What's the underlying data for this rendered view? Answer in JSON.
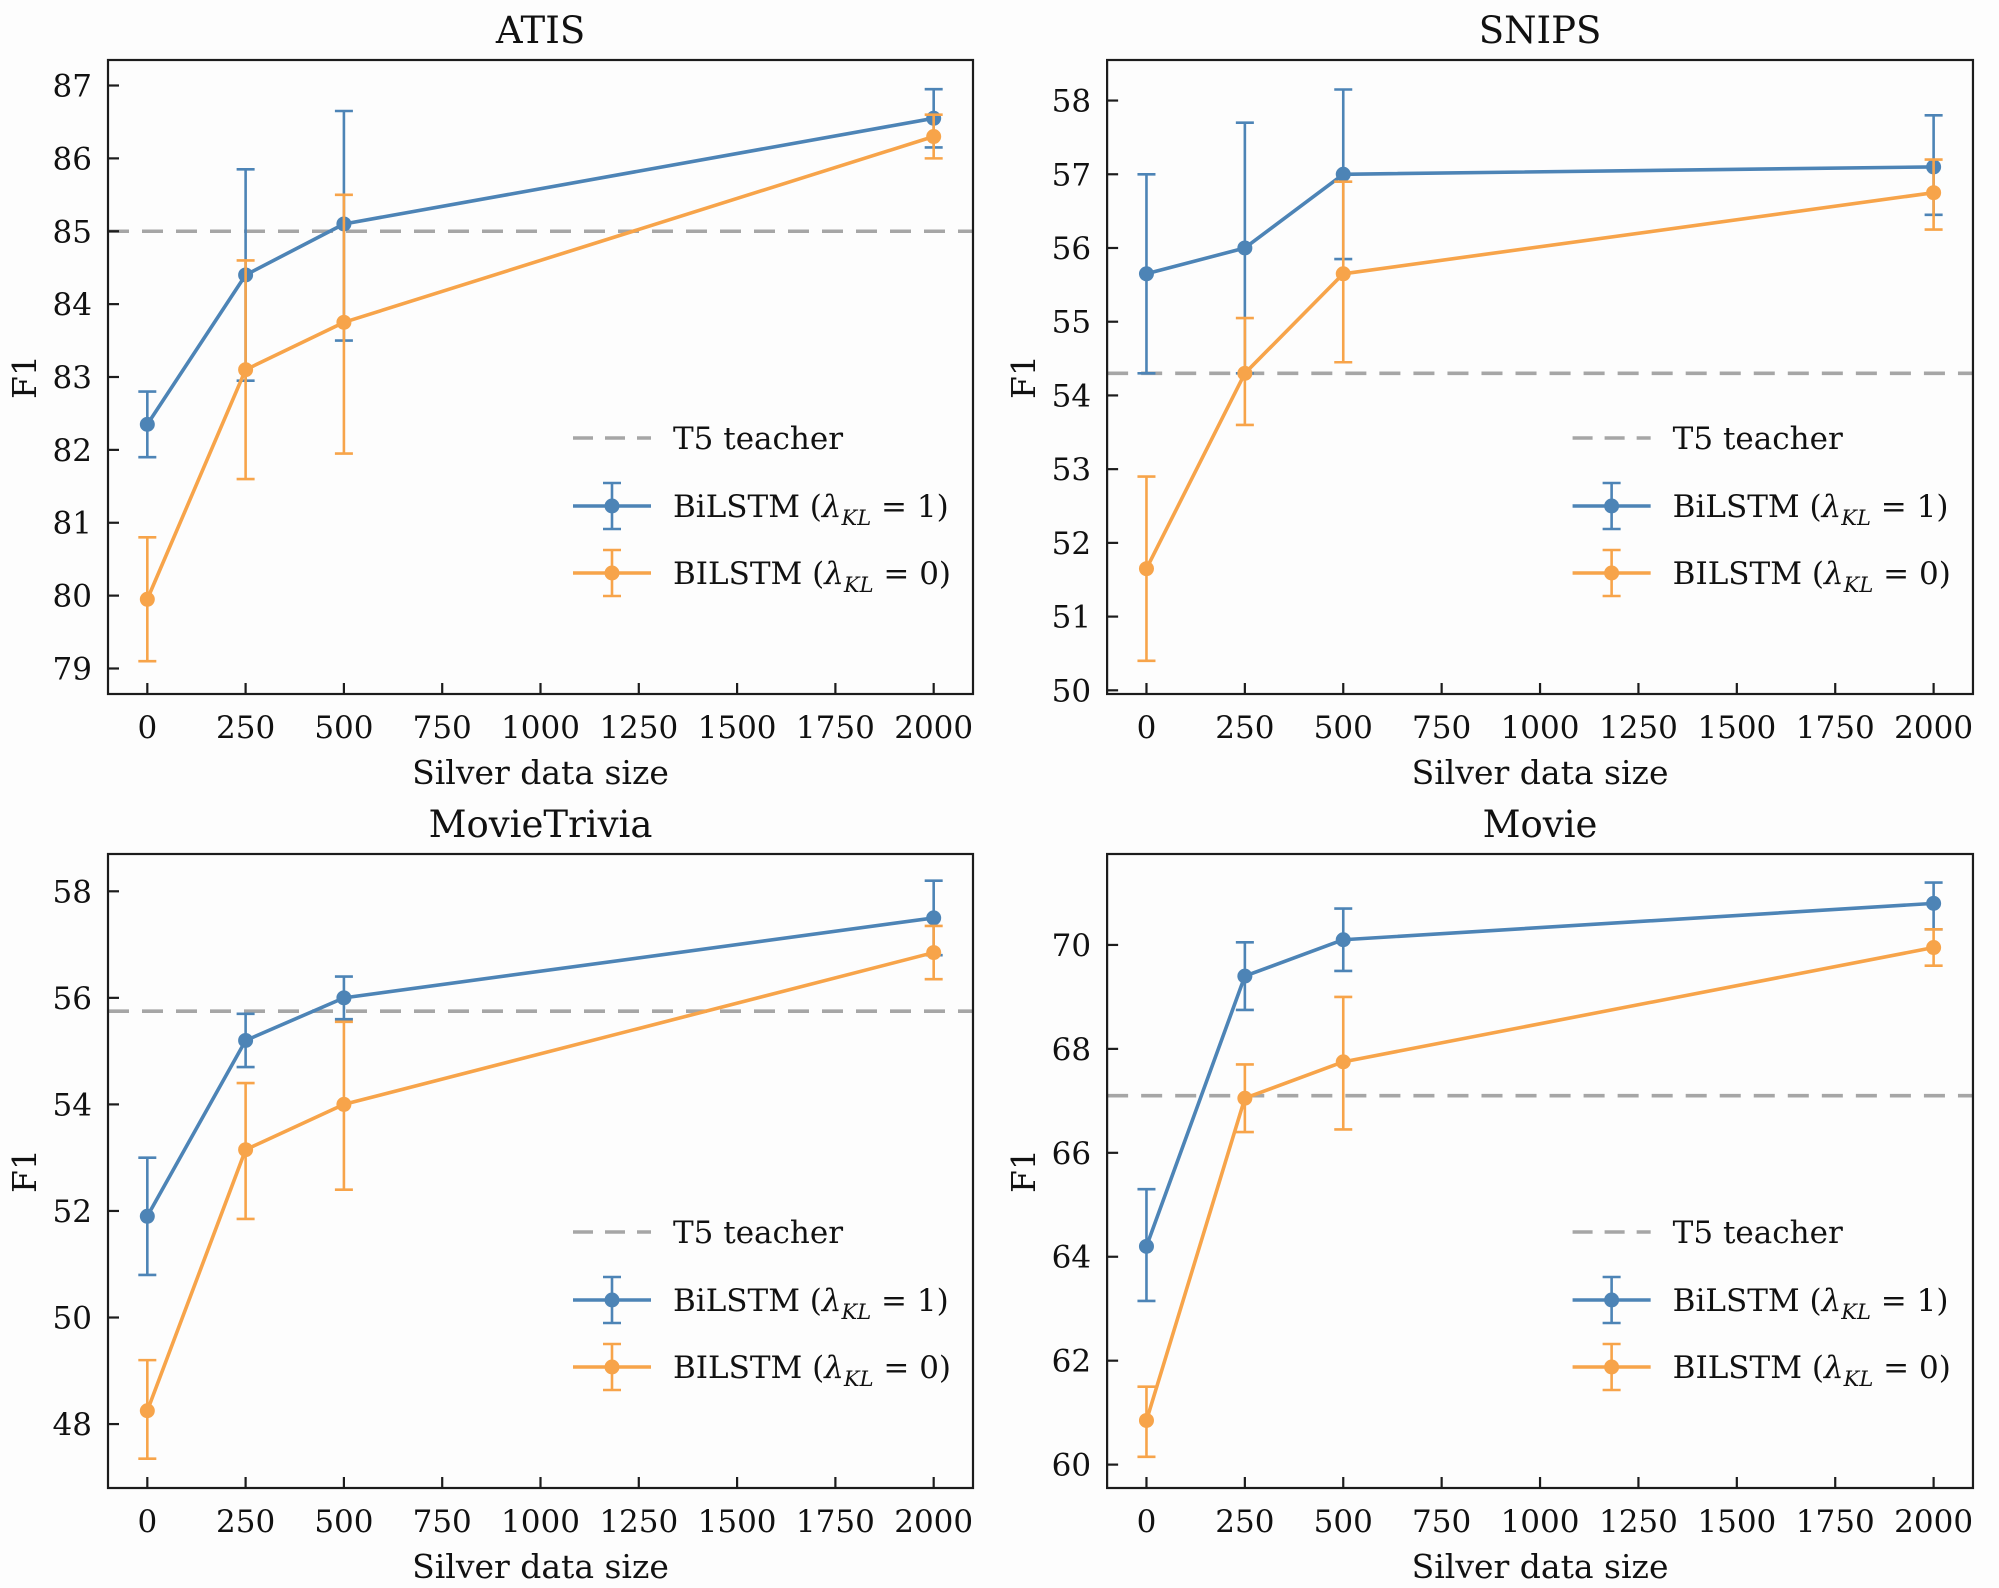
{
  "figure": {
    "background": "#fdfdfd",
    "axis_color": "#1c1c1c",
    "tick_label_color": "#111111",
    "teacher_color": "#a6a6a6",
    "series_colors": {
      "blue": "#4d84b6",
      "orange": "#f7a44a"
    }
  },
  "legend": {
    "position": "lower right",
    "frame": false,
    "teacher_label": "T5 teacher",
    "entries": [
      {
        "color_key": "blue",
        "pre": "BiLSTM (",
        "lambda": "λ",
        "sub": "KL",
        "post": " = 1)",
        "full_label": "BiLSTM (λ_KL = 1)"
      },
      {
        "color_key": "orange",
        "pre": "BILSTM (",
        "lambda": "λ",
        "sub": "KL",
        "post": " = 0)",
        "full_label": "BILSTM (λ_KL = 0)"
      }
    ]
  },
  "chart_data": [
    {
      "type": "line",
      "title": "ATIS",
      "xlabel": "Silver data size",
      "ylabel": "F1",
      "x": [
        0,
        250,
        500,
        2000
      ],
      "xticks": [
        0,
        250,
        500,
        750,
        1000,
        1250,
        1500,
        1750,
        2000
      ],
      "xlim": [
        -100,
        2100
      ],
      "yticks": [
        79,
        80,
        81,
        82,
        83,
        84,
        85,
        86,
        87
      ],
      "ylim": [
        78.65,
        87.35
      ],
      "grid": false,
      "teacher_value": 85.0,
      "series": [
        {
          "name": "BiLSTM (λ_KL = 1)",
          "color_key": "blue",
          "values": [
            82.35,
            84.4,
            85.1,
            86.55
          ],
          "err_lo": [
            81.9,
            82.95,
            83.5,
            86.15
          ],
          "err_hi": [
            82.8,
            85.85,
            86.65,
            86.95
          ]
        },
        {
          "name": "BILSTM (λ_KL = 0)",
          "color_key": "orange",
          "values": [
            79.95,
            83.1,
            83.75,
            86.3
          ],
          "err_lo": [
            79.1,
            81.6,
            81.95,
            86.0
          ],
          "err_hi": [
            80.8,
            84.6,
            85.5,
            86.6
          ]
        }
      ]
    },
    {
      "type": "line",
      "title": "SNIPS",
      "xlabel": "Silver data size",
      "ylabel": "F1",
      "x": [
        0,
        250,
        500,
        2000
      ],
      "xticks": [
        0,
        250,
        500,
        750,
        1000,
        1250,
        1500,
        1750,
        2000
      ],
      "xlim": [
        -100,
        2100
      ],
      "yticks": [
        50,
        51,
        52,
        53,
        54,
        55,
        56,
        57,
        58
      ],
      "ylim": [
        49.95,
        58.55
      ],
      "grid": false,
      "teacher_value": 54.3,
      "series": [
        {
          "name": "BiLSTM (λ_KL = 1)",
          "color_key": "blue",
          "values": [
            55.65,
            56.0,
            57.0,
            57.1
          ],
          "err_lo": [
            54.3,
            54.3,
            55.85,
            56.45
          ],
          "err_hi": [
            57.0,
            57.7,
            58.15,
            57.8
          ]
        },
        {
          "name": "BILSTM (λ_KL = 0)",
          "color_key": "orange",
          "values": [
            51.65,
            54.3,
            55.65,
            56.75
          ],
          "err_lo": [
            50.4,
            53.6,
            54.45,
            56.25
          ],
          "err_hi": [
            52.9,
            55.05,
            56.9,
            57.2
          ]
        }
      ]
    },
    {
      "type": "line",
      "title": "MovieTrivia",
      "xlabel": "Silver data size",
      "ylabel": "F1",
      "x": [
        0,
        250,
        500,
        2000
      ],
      "xticks": [
        0,
        250,
        500,
        750,
        1000,
        1250,
        1500,
        1750,
        2000
      ],
      "xlim": [
        -100,
        2100
      ],
      "yticks": [
        48,
        50,
        52,
        54,
        56,
        58
      ],
      "ylim": [
        46.8,
        58.7
      ],
      "grid": false,
      "teacher_value": 55.75,
      "series": [
        {
          "name": "BiLSTM (λ_KL = 1)",
          "color_key": "blue",
          "values": [
            51.9,
            55.2,
            56.0,
            57.5
          ],
          "err_lo": [
            50.8,
            54.7,
            55.6,
            56.8
          ],
          "err_hi": [
            53.0,
            55.7,
            56.4,
            58.2
          ]
        },
        {
          "name": "BILSTM (λ_KL = 0)",
          "color_key": "orange",
          "values": [
            48.25,
            53.15,
            54.0,
            56.85
          ],
          "err_lo": [
            47.35,
            51.85,
            52.4,
            56.35
          ],
          "err_hi": [
            49.2,
            54.4,
            55.55,
            57.35
          ]
        }
      ]
    },
    {
      "type": "line",
      "title": "Movie",
      "xlabel": "Silver data size",
      "ylabel": "F1",
      "x": [
        0,
        250,
        500,
        2000
      ],
      "xticks": [
        0,
        250,
        500,
        750,
        1000,
        1250,
        1500,
        1750,
        2000
      ],
      "xlim": [
        -100,
        2100
      ],
      "yticks": [
        60,
        62,
        64,
        66,
        68,
        70
      ],
      "ylim": [
        59.55,
        71.75
      ],
      "grid": false,
      "teacher_value": 67.1,
      "series": [
        {
          "name": "BiLSTM (λ_KL = 1)",
          "color_key": "blue",
          "values": [
            64.2,
            69.4,
            70.1,
            70.8
          ],
          "err_lo": [
            63.15,
            68.75,
            69.5,
            70.3
          ],
          "err_hi": [
            65.3,
            70.05,
            70.7,
            71.2
          ]
        },
        {
          "name": "BILSTM (λ_KL = 0)",
          "color_key": "orange",
          "values": [
            60.85,
            67.05,
            67.75,
            69.95
          ],
          "err_lo": [
            60.15,
            66.4,
            66.45,
            69.6
          ],
          "err_hi": [
            61.5,
            67.7,
            69.0,
            70.3
          ]
        }
      ]
    }
  ]
}
